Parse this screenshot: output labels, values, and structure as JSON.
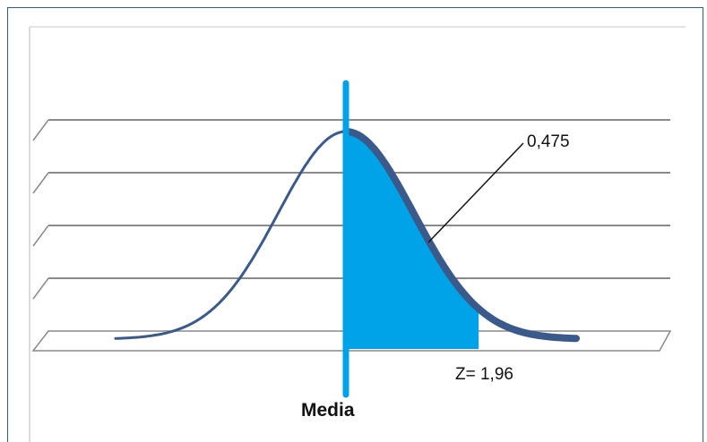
{
  "chart_data": {
    "type": "area",
    "distribution": "normal",
    "mean": 0,
    "sd": 1,
    "xlim": [
      -3.5,
      3.5
    ],
    "shaded_region": {
      "from": 0,
      "to": 1.96,
      "area": "0,475"
    },
    "mean_label": "Media",
    "z_label": "Z= 1,96",
    "area_label": "0,475",
    "gridlines": true,
    "style": "3d-floor",
    "colors": {
      "curve": "#3a5a8c",
      "fill": "#00a2e8",
      "mean_line": "#00a2e8",
      "grid": "#8a8a8a",
      "frame": "#2e5f8a"
    }
  }
}
